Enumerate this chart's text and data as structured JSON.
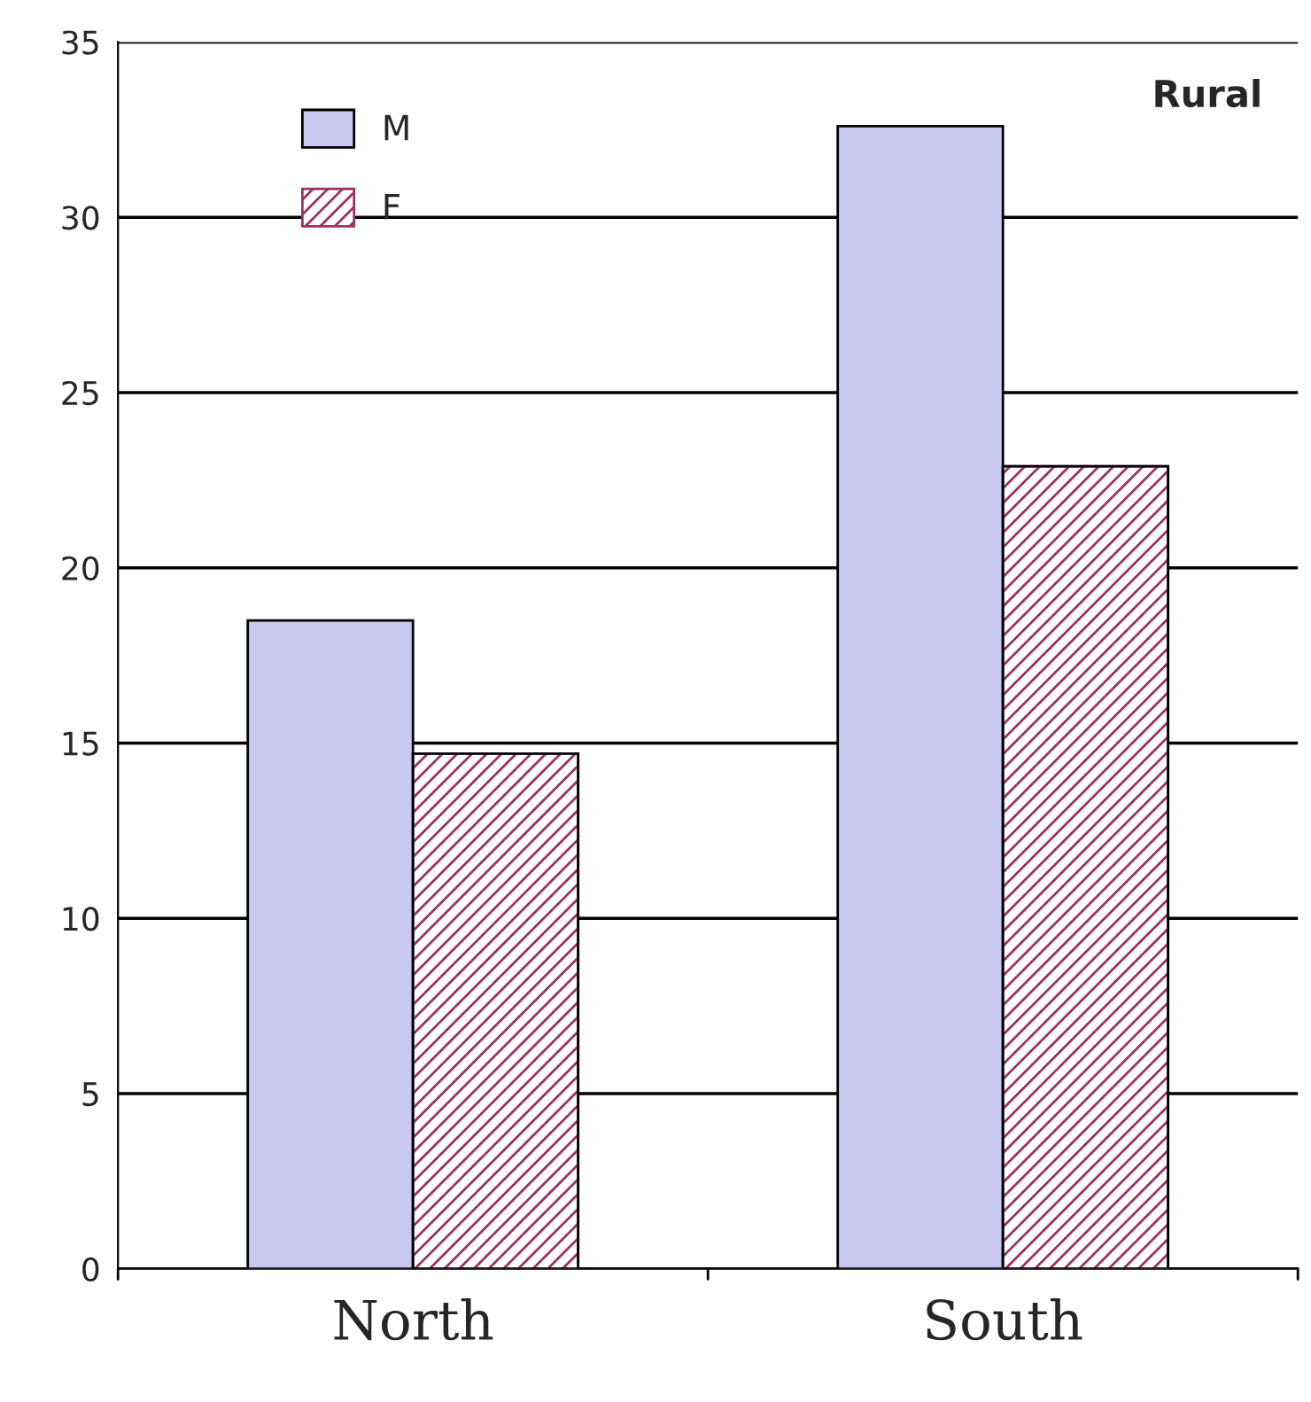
{
  "chart_data": {
    "type": "bar",
    "categories": [
      "North",
      "South"
    ],
    "series": [
      {
        "name": "M",
        "color": "#c8c8f0",
        "values": [
          18.5,
          32.6
        ]
      },
      {
        "name": "F",
        "color": "#993366",
        "values": [
          14.7,
          22.9
        ]
      }
    ],
    "ylim": [
      0,
      35
    ],
    "yticks": [
      0,
      5,
      10,
      15,
      20,
      25,
      30,
      35
    ],
    "grid": "y",
    "legend": "top left",
    "annotations": [
      "Rural"
    ]
  }
}
